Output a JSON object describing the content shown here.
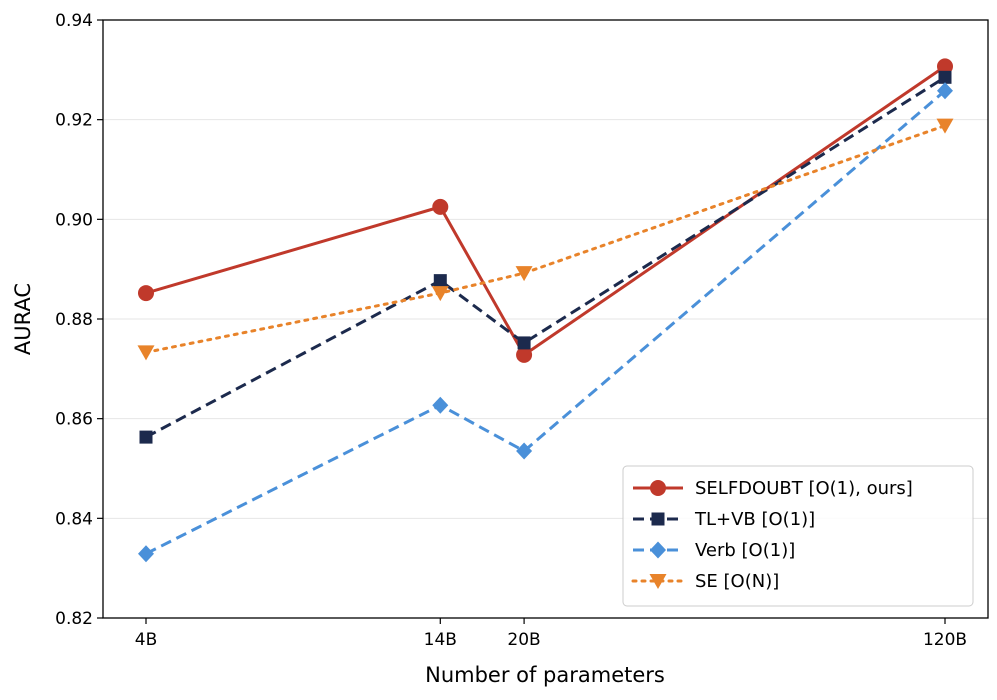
{
  "chart_data": {
    "type": "line",
    "title": "",
    "xlabel": "Number of parameters",
    "ylabel": "AURAC",
    "x_tick_labels": [
      "4B",
      "14B",
      "20B",
      "120B"
    ],
    "x_values": [
      4,
      14,
      20,
      120
    ],
    "x_scale": "log",
    "ylim": [
      0.82,
      0.94
    ],
    "y_ticks": [
      0.82,
      0.84,
      0.86,
      0.88,
      0.9,
      0.92,
      0.94
    ],
    "y_tick_labels": [
      "0.82",
      "0.84",
      "0.86",
      "0.88",
      "0.90",
      "0.92",
      "0.94"
    ],
    "grid": "horizontal",
    "legend_position": "bottom-right",
    "series": [
      {
        "name": "SELFDOUBT [O(1), ours]",
        "values": [
          0.8852,
          0.9025,
          0.8728,
          0.9307
        ],
        "color": "#c0392b",
        "dash": "solid",
        "marker": "circle"
      },
      {
        "name": "TL+VB [O(1)]",
        "values": [
          0.8563,
          0.8877,
          0.8752,
          0.9285
        ],
        "color": "#1c2a4d",
        "dash": "dashed",
        "marker": "square"
      },
      {
        "name": "Verb [O(1)]",
        "values": [
          0.8329,
          0.8627,
          0.8535,
          0.9258
        ],
        "color": "#4a90d9",
        "dash": "dashed",
        "marker": "diamond"
      },
      {
        "name": "SE [O(N)]",
        "values": [
          0.8733,
          0.8852,
          0.8892,
          0.9188
        ],
        "color": "#e8832a",
        "dash": "dotted",
        "marker": "triangle-down"
      }
    ]
  }
}
